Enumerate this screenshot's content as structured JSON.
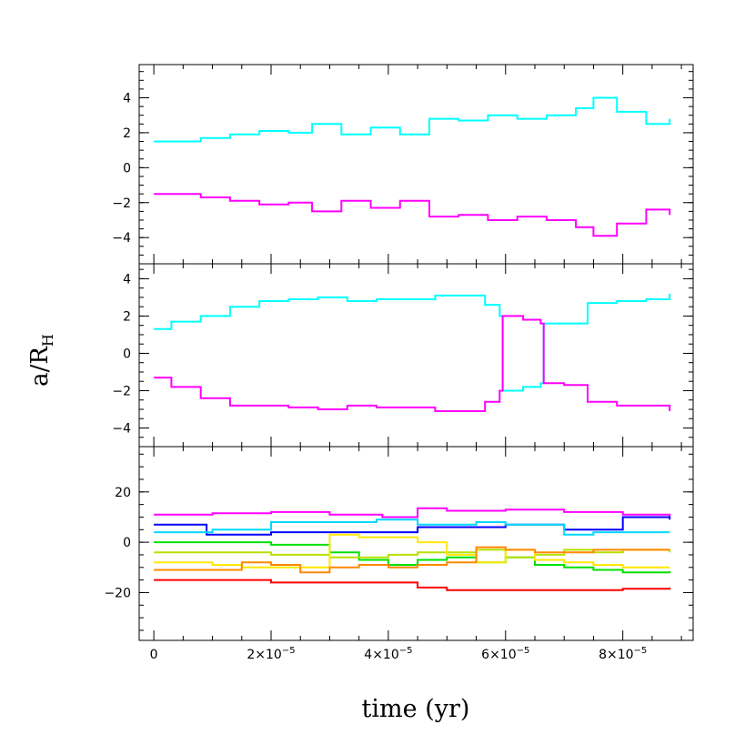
{
  "chart_data": {
    "type": "line",
    "xlabel": "time (yr)",
    "ylabel_main": "a/R",
    "ylabel_sub": "H",
    "xlim": [
      -2.5e-06,
      9.2e-05
    ],
    "x_ticks": [
      {
        "value": 0,
        "label": "0"
      },
      {
        "value": 2e-05,
        "label": "2×10",
        "exp": "−5"
      },
      {
        "value": 4e-05,
        "label": "4×10",
        "exp": "−5"
      },
      {
        "value": 6e-05,
        "label": "6×10",
        "exp": "−5"
      },
      {
        "value": 8e-05,
        "label": "8×10",
        "exp": "−5"
      }
    ],
    "panels": [
      {
        "ylim": [
          -5.5,
          5.9
        ],
        "y_ticks": [
          4,
          2,
          0,
          -2,
          -4
        ],
        "y_tick_labels": [
          "4",
          "2",
          "0",
          "−2",
          "−4"
        ],
        "series": [
          {
            "color": "#00ffff",
            "x": [
              0,
              3e-06,
              8e-06,
              1.3e-05,
              1.8e-05,
              2.3e-05,
              2.7e-05,
              3.2e-05,
              3.7e-05,
              4.2e-05,
              4.7e-05,
              5.2e-05,
              5.7e-05,
              6.2e-05,
              6.7e-05,
              7.2e-05,
              7.5e-05,
              7.9e-05,
              8.4e-05,
              8.8e-05
            ],
            "y": [
              1.5,
              1.5,
              1.7,
              1.9,
              2.1,
              2.0,
              2.5,
              1.9,
              2.3,
              1.9,
              2.8,
              2.7,
              3.0,
              2.8,
              3.0,
              3.4,
              4.0,
              3.2,
              2.5,
              2.8
            ]
          },
          {
            "color": "#ff00ff",
            "x": [
              0,
              3e-06,
              8e-06,
              1.3e-05,
              1.8e-05,
              2.3e-05,
              2.7e-05,
              3.2e-05,
              3.7e-05,
              4.2e-05,
              4.7e-05,
              5.2e-05,
              5.7e-05,
              6.2e-05,
              6.7e-05,
              7.2e-05,
              7.5e-05,
              7.9e-05,
              8.4e-05,
              8.8e-05
            ],
            "y": [
              -1.5,
              -1.5,
              -1.7,
              -1.9,
              -2.1,
              -2.0,
              -2.5,
              -1.9,
              -2.3,
              -1.9,
              -2.8,
              -2.7,
              -3.0,
              -2.8,
              -3.0,
              -3.4,
              -3.9,
              -3.2,
              -2.4,
              -2.7
            ]
          }
        ]
      },
      {
        "ylim": [
          -5.0,
          4.8
        ],
        "y_ticks": [
          4,
          2,
          0,
          -2,
          -4
        ],
        "y_tick_labels": [
          "4",
          "2",
          "0",
          "−2",
          "−4"
        ],
        "series": [
          {
            "color": "#00ffff",
            "x": [
              0,
              3e-06,
              8e-06,
              1.3e-05,
              1.8e-05,
              2.3e-05,
              2.8e-05,
              3.3e-05,
              3.8e-05,
              4.3e-05,
              4.8e-05,
              5.3e-05,
              5.65e-05,
              5.9e-05,
              5.95e-05,
              6.3e-05,
              6.6e-05,
              6.65e-05,
              7e-05,
              7.4e-05,
              7.9e-05,
              8.4e-05,
              8.8e-05
            ],
            "y": [
              1.3,
              1.7,
              2.0,
              2.5,
              2.8,
              2.9,
              3.0,
              2.8,
              2.9,
              2.9,
              3.1,
              3.1,
              2.6,
              2.0,
              -2.0,
              -1.8,
              -1.6,
              1.6,
              1.6,
              2.7,
              2.8,
              2.9,
              3.2
            ]
          },
          {
            "color": "#ff00ff",
            "x": [
              0,
              3e-06,
              8e-06,
              1.3e-05,
              1.8e-05,
              2.3e-05,
              2.8e-05,
              3.3e-05,
              3.8e-05,
              4.3e-05,
              4.8e-05,
              5.3e-05,
              5.65e-05,
              5.9e-05,
              5.95e-05,
              6.3e-05,
              6.6e-05,
              6.65e-05,
              7e-05,
              7.4e-05,
              7.9e-05,
              8.4e-05,
              8.8e-05
            ],
            "y": [
              -1.3,
              -1.8,
              -2.4,
              -2.8,
              -2.8,
              -2.9,
              -3.0,
              -2.8,
              -2.9,
              -2.9,
              -3.1,
              -3.1,
              -2.6,
              -2.0,
              2.0,
              1.8,
              1.6,
              -1.6,
              -1.7,
              -2.6,
              -2.8,
              -2.8,
              -3.1
            ]
          }
        ]
      },
      {
        "ylim": [
          -39,
          38
        ],
        "y_ticks": [
          20,
          0,
          -20
        ],
        "y_tick_labels": [
          "20",
          "0",
          "−20"
        ],
        "series": [
          {
            "color": "#ff00ff",
            "x": [
              0,
              1e-05,
              2e-05,
              3e-05,
              3.9e-05,
              4.5e-05,
              5e-05,
              6e-05,
              7e-05,
              8e-05,
              8.8e-05
            ],
            "y": [
              11,
              11.5,
              12,
              11,
              10,
              13.5,
              12.5,
              13,
              12,
              11,
              10
            ]
          },
          {
            "color": "#0000ff",
            "x": [
              0,
              9e-06,
              1.5e-05,
              2e-05,
              3e-05,
              3.5e-05,
              4e-05,
              4.5e-05,
              5e-05,
              6e-05,
              6.8e-05,
              7e-05,
              8e-05,
              8.8e-05
            ],
            "y": [
              7,
              3,
              3,
              4,
              4,
              4,
              4,
              6,
              6,
              7,
              7,
              5,
              10,
              9
            ]
          },
          {
            "color": "#00d8ff",
            "x": [
              0,
              1e-05,
              2e-05,
              3e-05,
              3.8e-05,
              4.5e-05,
              5.5e-05,
              6e-05,
              7e-05,
              7.5e-05,
              8.8e-05
            ],
            "y": [
              4,
              5,
              8,
              8,
              9,
              7,
              8,
              7,
              3,
              4,
              4
            ]
          },
          {
            "color": "#00e000",
            "x": [
              0,
              1e-05,
              2e-05,
              2.5e-05,
              3e-05,
              3.5e-05,
              4e-05,
              4.5e-05,
              5e-05,
              5.5e-05,
              6e-05,
              6.5e-05,
              7e-05,
              7.5e-05,
              8e-05,
              8.8e-05
            ],
            "y": [
              0,
              0,
              -1,
              -1,
              -4,
              -7,
              -9,
              -7,
              -6,
              -8,
              -6,
              -9,
              -10,
              -11,
              -12,
              -11.5
            ]
          },
          {
            "color": "#b8e000",
            "x": [
              0,
              1e-05,
              2e-05,
              2.5e-05,
              3e-05,
              3.5e-05,
              4e-05,
              4.5e-05,
              5e-05,
              5.5e-05,
              6e-05,
              6.5e-05,
              7e-05,
              7.5e-05,
              8e-05,
              8.8e-05
            ],
            "y": [
              -4,
              -4,
              -5,
              -5,
              -6,
              -6,
              -5,
              -4,
              -4,
              -3,
              -6,
              -5,
              -3,
              -4,
              -3,
              -4
            ]
          },
          {
            "color": "#ffe800",
            "x": [
              0,
              1e-05,
              1.5e-05,
              2e-05,
              2.5e-05,
              3e-05,
              3.5e-05,
              4e-05,
              4.5e-05,
              5e-05,
              5.5e-05,
              6e-05,
              6.5e-05,
              7e-05,
              7.5e-05,
              8e-05,
              8.8e-05
            ],
            "y": [
              -8,
              -9,
              -10,
              -10,
              -10,
              3,
              2,
              2,
              0,
              -5,
              -8,
              -3,
              -7,
              -8,
              -9,
              -10,
              -10
            ]
          },
          {
            "color": "#ff8800",
            "x": [
              0,
              1e-05,
              1.5e-05,
              2e-05,
              2.5e-05,
              3e-05,
              3.5e-05,
              4e-05,
              4.5e-05,
              5e-05,
              5.5e-05,
              6e-05,
              6.5e-05,
              7e-05,
              7.5e-05,
              8e-05,
              8.8e-05
            ],
            "y": [
              -11,
              -11,
              -8,
              -9,
              -12,
              -10,
              -9,
              -10,
              -9,
              -8,
              -2,
              -3,
              -4,
              -4,
              -3,
              -3,
              -3
            ]
          },
          {
            "color": "#ff0000",
            "x": [
              0,
              1e-05,
              2e-05,
              3e-05,
              3.5e-05,
              4e-05,
              4.5e-05,
              5e-05,
              6e-05,
              7e-05,
              8e-05,
              8.8e-05
            ],
            "y": [
              -15,
              -15,
              -16,
              -16,
              -16,
              -16,
              -18,
              -19,
              -19,
              -19,
              -18.5,
              -18
            ]
          }
        ]
      }
    ]
  }
}
